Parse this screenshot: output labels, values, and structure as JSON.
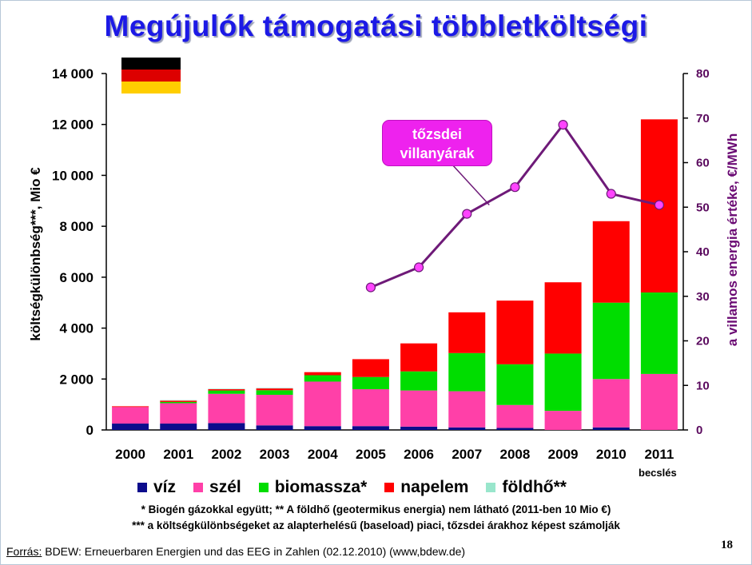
{
  "slide": {
    "title": "Megújulók támogatási többletköltségi",
    "page_number": "18",
    "flag_colors": [
      "#000000",
      "#dd0000",
      "#ffce00"
    ],
    "callout": {
      "line1": "tőzsdei",
      "line2": "villanyárak"
    },
    "estimate_note": "becslés",
    "notes": [
      "* Biogén gázokkal együtt;   ** A földhő (geotermikus energia) nem látható (2011-ben 10 Mio €)",
      "*** a költségkülönbségeket az alapterhelésű (baseload) piaci, tőzsdei árakhoz képest számolják"
    ],
    "source_label": "Forrás:",
    "source_text": " BDEW: Erneuerbaren Energien und das EEG in Zahlen (02.12.2010) (www,bdew.de)"
  },
  "chart_data": {
    "type": "bar",
    "stacked": true,
    "categories": [
      "2000",
      "2001",
      "2002",
      "2003",
      "2004",
      "2005",
      "2006",
      "2007",
      "2008",
      "2009",
      "2010",
      "2011"
    ],
    "y_left": {
      "label": "költségkülönbség***,  Mio €",
      "ylim": [
        0,
        14000
      ],
      "ticks": [
        0,
        2000,
        4000,
        6000,
        8000,
        10000,
        12000,
        14000
      ],
      "tick_labels": [
        "0",
        "2 000",
        "4 000",
        "6 000",
        "8 000",
        "10 000",
        "12 000",
        "14 000"
      ]
    },
    "y_right": {
      "label": "a villamos energia értéke, €/MWh",
      "ylim": [
        0,
        80
      ],
      "ticks": [
        0,
        10,
        20,
        30,
        40,
        50,
        60,
        70,
        80
      ],
      "tick_labels": [
        "0",
        "10",
        "20",
        "30",
        "40",
        "50",
        "60",
        "70",
        "80"
      ]
    },
    "series": [
      {
        "name": "víz",
        "color": "#0c0c8c",
        "values": [
          250,
          250,
          270,
          180,
          150,
          150,
          130,
          100,
          80,
          0,
          100,
          0
        ]
      },
      {
        "name": "szél",
        "color": "#ff40a8",
        "values": [
          650,
          800,
          1150,
          1200,
          1750,
          1450,
          1420,
          1420,
          900,
          750,
          1900,
          2200
        ]
      },
      {
        "name": "biomassza*",
        "color": "#00dd00",
        "values": [
          0,
          50,
          130,
          180,
          250,
          480,
          750,
          1500,
          1600,
          2250,
          3000,
          3200
        ]
      },
      {
        "name": "napelem",
        "color": "#ff0000",
        "values": [
          30,
          50,
          50,
          70,
          120,
          700,
          1100,
          1600,
          2500,
          2800,
          3200,
          6800
        ]
      },
      {
        "name": "földhő**",
        "color": "#99e6cc",
        "values": [
          0,
          20,
          20,
          20,
          0,
          0,
          0,
          0,
          0,
          0,
          0,
          0
        ]
      }
    ],
    "line_series": {
      "axis": "right",
      "color": "#6e1a78",
      "marker_color": "#ff44ff",
      "x": [
        "2005",
        "2006",
        "2007",
        "2008",
        "2009",
        "2010",
        "2011"
      ],
      "values": [
        32,
        36.5,
        48.5,
        54.5,
        68.5,
        53,
        50.5
      ]
    },
    "grid": false,
    "legend_position": "bottom"
  }
}
